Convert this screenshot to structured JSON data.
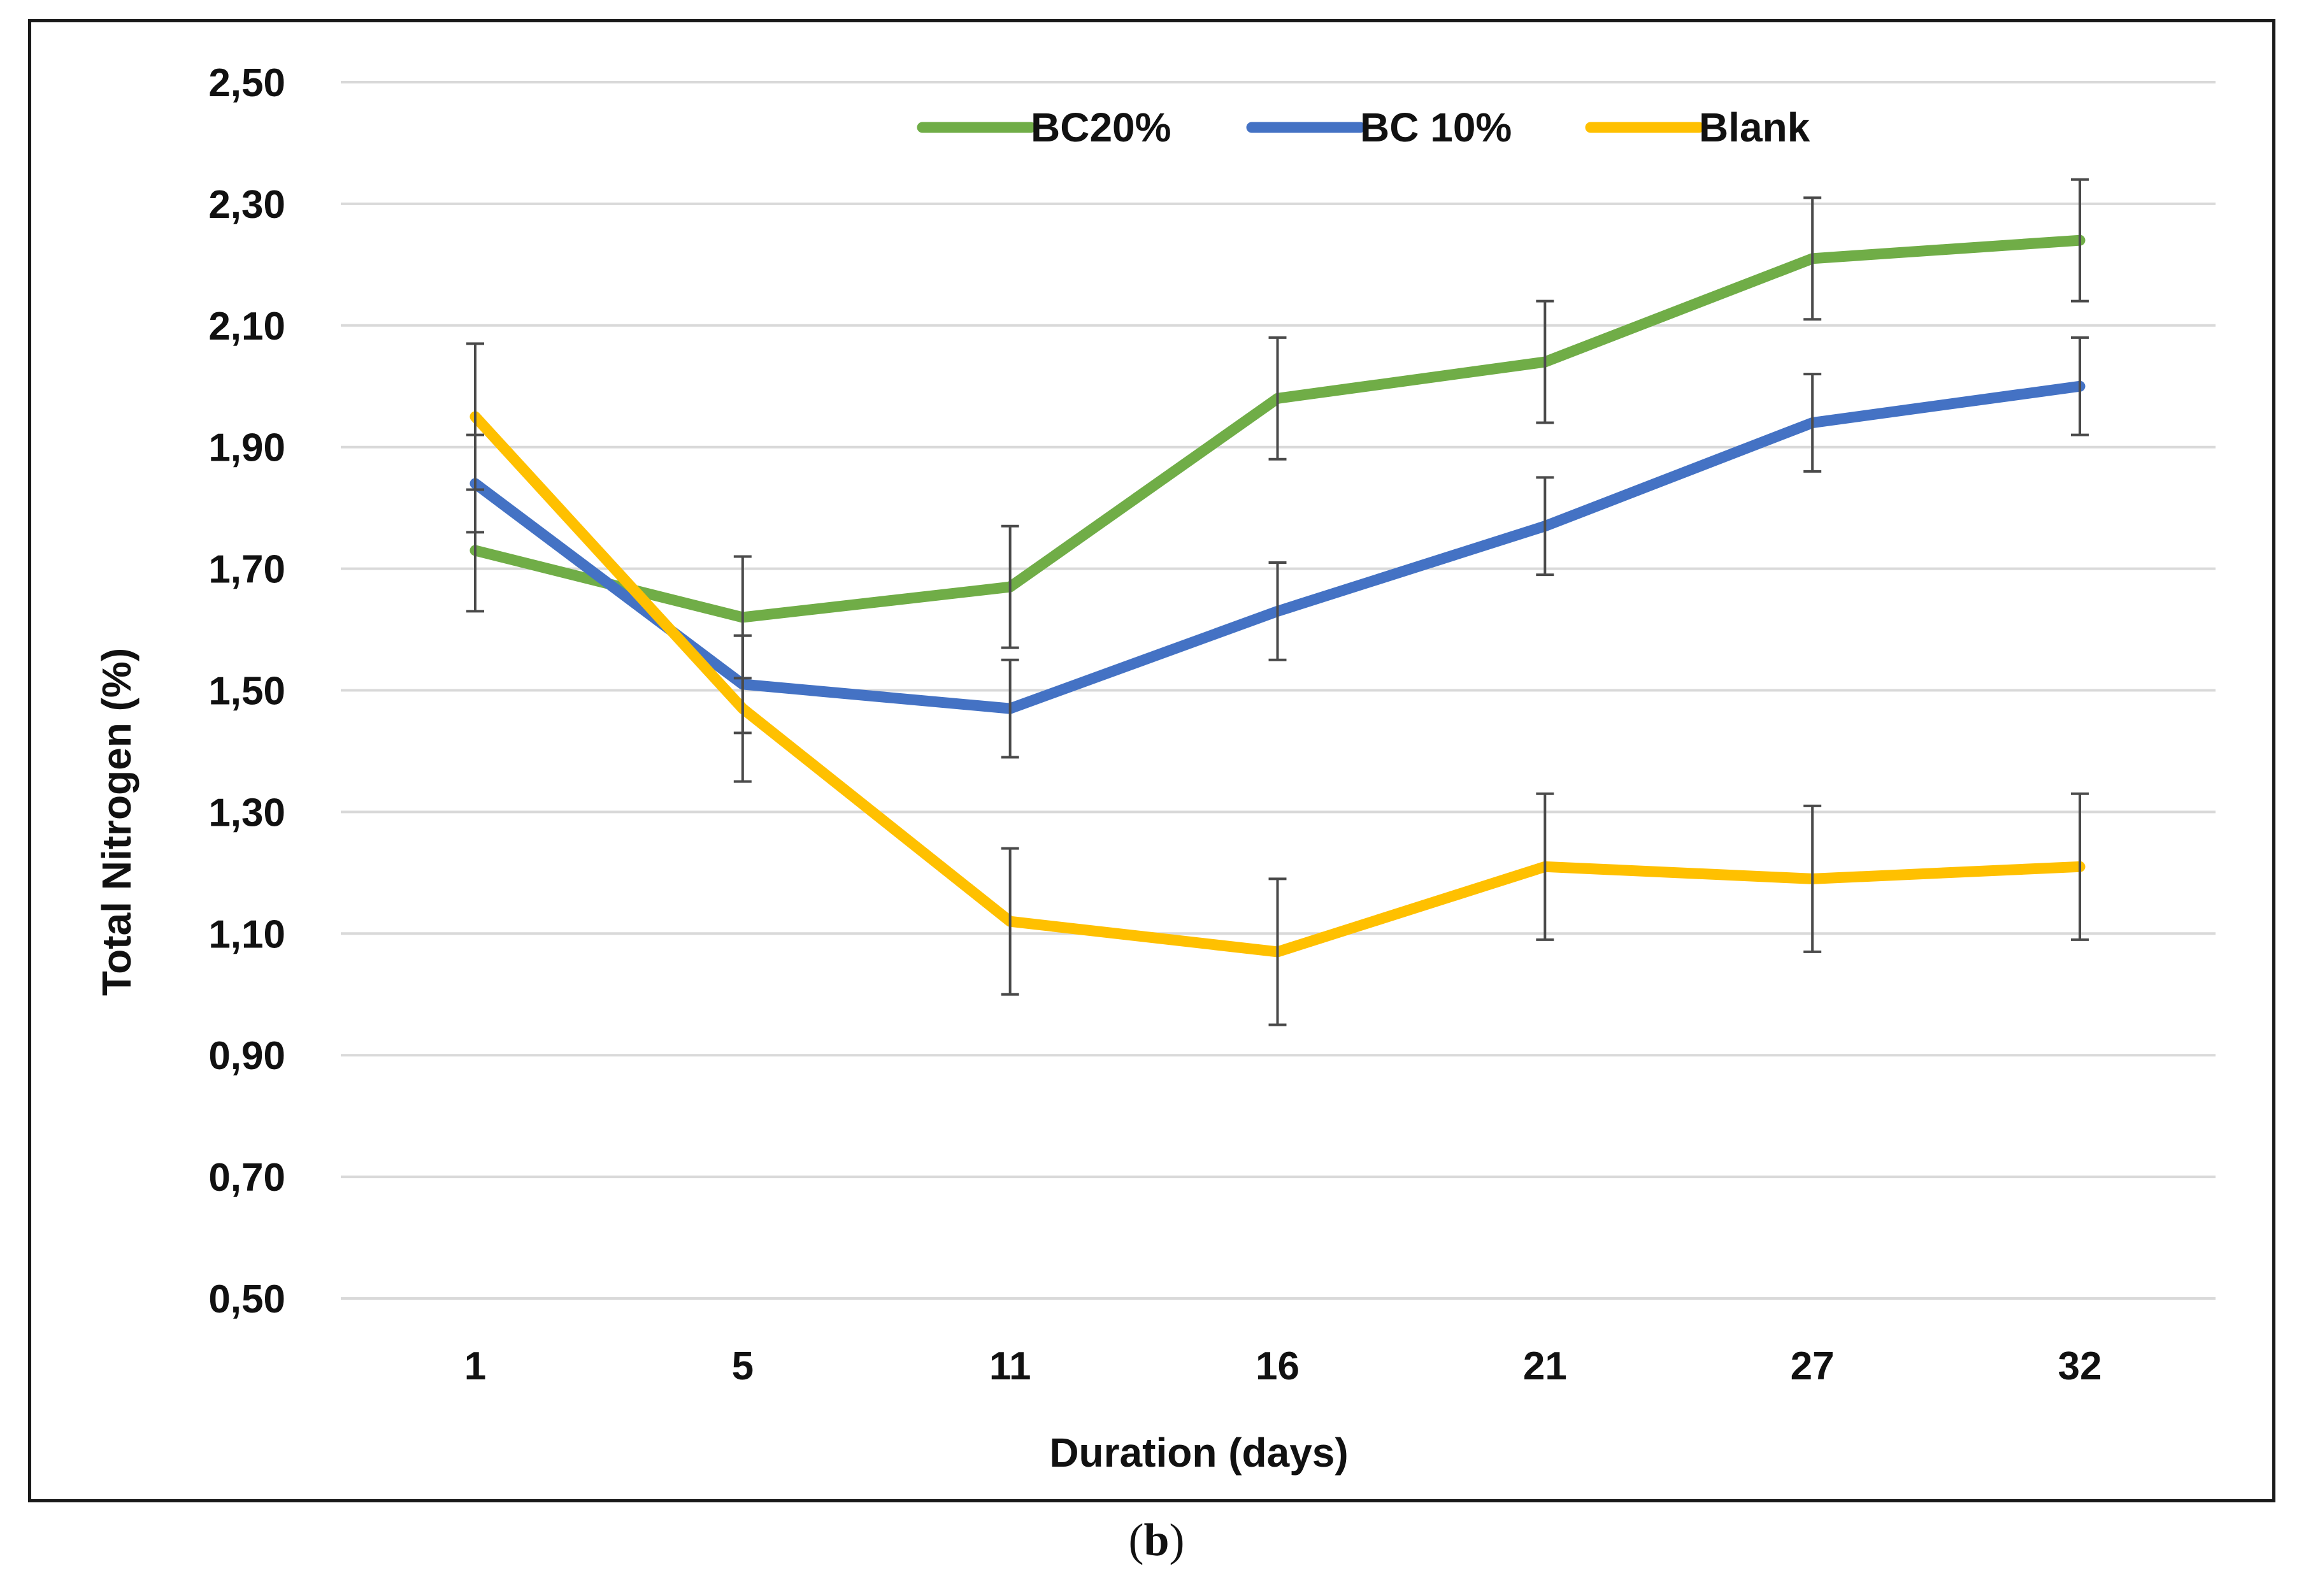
{
  "chart_data": {
    "type": "line",
    "xlabel": "Duration (days)",
    "ylabel": "Total Nitrogen (%)",
    "categories": [
      "1",
      "5",
      "11",
      "16",
      "21",
      "27",
      "32"
    ],
    "ylim": [
      0.5,
      2.5
    ],
    "yticks": [
      "0,50",
      "0,70",
      "0,90",
      "1,10",
      "1,30",
      "1,50",
      "1,70",
      "1,90",
      "2,10",
      "2,30",
      "2,50"
    ],
    "ytick_values": [
      0.5,
      0.7,
      0.9,
      1.1,
      1.3,
      1.5,
      1.7,
      1.9,
      2.1,
      2.3,
      2.5
    ],
    "grid": true,
    "legend_position": "top",
    "series": [
      {
        "name": "BC20%",
        "color": "#70ad47",
        "values": [
          1.73,
          1.62,
          1.67,
          1.98,
          2.04,
          2.21,
          2.24
        ],
        "errors": [
          0.1,
          0.1,
          0.1,
          0.1,
          0.1,
          0.1,
          0.1
        ]
      },
      {
        "name": "BC 10%",
        "color": "#4472c4",
        "values": [
          1.84,
          1.51,
          1.47,
          1.63,
          1.77,
          1.94,
          2.0
        ],
        "errors": [
          0.08,
          0.08,
          0.08,
          0.08,
          0.08,
          0.08,
          0.08
        ]
      },
      {
        "name": "Blank",
        "color": "#ffc000",
        "values": [
          1.95,
          1.47,
          1.12,
          1.07,
          1.21,
          1.19,
          1.21
        ],
        "errors": [
          0.12,
          0.12,
          0.12,
          0.12,
          0.12,
          0.12,
          0.12
        ]
      }
    ]
  },
  "caption": {
    "label": "b"
  }
}
